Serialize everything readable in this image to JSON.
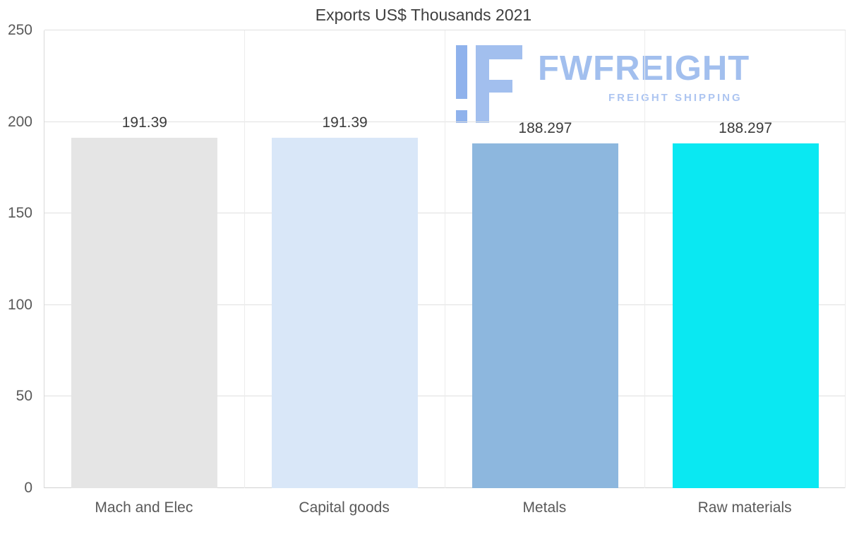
{
  "chart_data": {
    "type": "bar",
    "title": "Exports US$ Thousands 2021",
    "categories": [
      "Mach and Elec",
      "Capital goods",
      "Metals",
      "Raw materials"
    ],
    "values": [
      191.39,
      191.39,
      188.297,
      188.297
    ],
    "labels": [
      "191.39",
      "191.39",
      "188.297",
      "188.297"
    ],
    "bar_colors": [
      "#e5e5e5",
      "#d9e7f8",
      "#8db7de",
      "#0ae8f2"
    ],
    "ylim": [
      0,
      250
    ],
    "yticks": [
      0,
      50,
      100,
      150,
      200,
      250
    ],
    "grid": true,
    "legend": false,
    "xlabel": "",
    "ylabel": ""
  },
  "watermark": {
    "brand": "FWFREIGHT",
    "tagline": "FREIGHT SHIPPING",
    "icon": "fwfreight-f-icon",
    "color": "#a2bfee"
  },
  "colors": {
    "grid": "#e0e0e0",
    "axis_line": "#d9d9d9",
    "tick_text": "#595959",
    "title_text": "#3f3f3f"
  }
}
